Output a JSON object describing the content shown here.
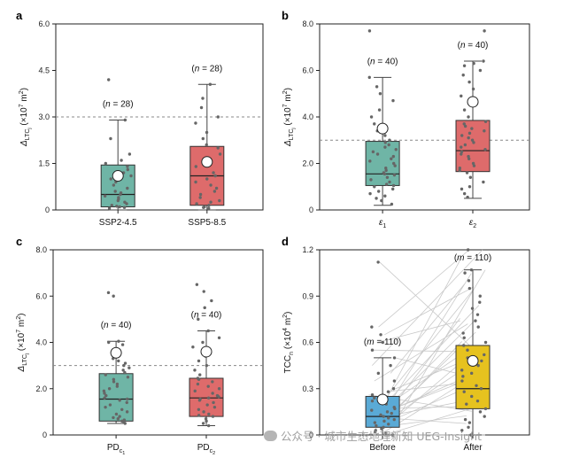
{
  "watermark": {
    "text": "公众号 · 城市生态地理新知 UEG-Insight"
  },
  "chart_data": [
    {
      "panel": "a",
      "type": "box",
      "ylabel": {
        "main": "Δ",
        "sub": "LTC",
        "subsub": "j",
        "rest": " (×10",
        "exp": "7",
        "unit": " m",
        "unitexp": "2",
        "close": ")"
      },
      "ylim": [
        0,
        6.0
      ],
      "yticks": [
        "0",
        "1.5",
        "3.0",
        "4.5",
        "6.0"
      ],
      "ytick_values": [
        0,
        1.5,
        3.0,
        4.5,
        6.0
      ],
      "reference_line": 3.0,
      "categories": [
        {
          "label": "SSP2-4.5",
          "n_text": "(n = 28)",
          "color": "#6fb5a6",
          "min": 0.0,
          "q1": 0.1,
          "median": 0.5,
          "q3": 1.45,
          "max": 2.9,
          "mean": 1.1,
          "points": [
            0.05,
            0.08,
            0.1,
            0.12,
            0.15,
            0.2,
            0.25,
            0.3,
            0.35,
            0.4,
            0.45,
            0.5,
            0.55,
            0.6,
            0.7,
            0.8,
            0.9,
            1.0,
            1.1,
            1.2,
            1.3,
            1.4,
            1.5,
            1.6,
            1.8,
            2.3,
            2.9,
            4.2
          ]
        },
        {
          "label": "SSP5-8.5",
          "n_text": "(n = 28)",
          "color": "#de6b6b",
          "min": 0.0,
          "q1": 0.15,
          "median": 1.1,
          "q3": 2.05,
          "max": 4.05,
          "mean": 1.55,
          "points": [
            0.05,
            0.08,
            0.1,
            0.15,
            0.2,
            0.25,
            0.3,
            0.4,
            0.5,
            0.6,
            0.7,
            0.8,
            0.9,
            1.0,
            1.1,
            1.2,
            1.4,
            1.6,
            1.8,
            2.0,
            2.1,
            2.3,
            2.5,
            2.8,
            3.0,
            3.3,
            3.6,
            4.05
          ]
        }
      ]
    },
    {
      "panel": "b",
      "type": "box",
      "ylabel": {
        "main": "Δ",
        "sub": "LTC",
        "subsub": "j",
        "rest": " (×10",
        "exp": "7",
        "unit": " m",
        "unitexp": "2",
        "close": ")"
      },
      "ylim": [
        0,
        8.0
      ],
      "yticks": [
        "0",
        "2.0",
        "4.0",
        "6.0",
        "8.0"
      ],
      "ytick_values": [
        0,
        2.0,
        4.0,
        6.0,
        8.0
      ],
      "reference_line": 3.0,
      "categories": [
        {
          "label": "ε",
          "label_sub": "1",
          "n_text": "(n = 40)",
          "color": "#6fb5a6",
          "min": 0.2,
          "q1": 1.05,
          "median": 1.55,
          "q3": 2.95,
          "max": 5.7,
          "mean": 3.5,
          "points": [
            0.25,
            0.4,
            0.5,
            0.6,
            0.7,
            0.8,
            0.9,
            1.0,
            1.05,
            1.1,
            1.2,
            1.3,
            1.4,
            1.5,
            1.55,
            1.6,
            1.7,
            1.8,
            1.9,
            2.0,
            2.1,
            2.2,
            2.3,
            2.4,
            2.5,
            2.6,
            2.7,
            2.8,
            2.9,
            3.0,
            3.2,
            3.4,
            3.7,
            4.0,
            4.3,
            4.7,
            5.0,
            5.3,
            5.7,
            7.7
          ]
        },
        {
          "label": "ε",
          "label_sub": "2",
          "n_text": "(n = 40)",
          "color": "#de6b6b",
          "min": 0.5,
          "q1": 1.65,
          "median": 2.55,
          "q3": 3.85,
          "max": 6.4,
          "mean": 4.65,
          "points": [
            0.55,
            0.7,
            0.9,
            1.0,
            1.2,
            1.4,
            1.6,
            1.7,
            1.8,
            1.9,
            2.0,
            2.2,
            2.3,
            2.4,
            2.5,
            2.6,
            2.7,
            2.8,
            2.9,
            3.0,
            3.1,
            3.2,
            3.3,
            3.4,
            3.5,
            3.6,
            3.7,
            3.8,
            4.0,
            4.3,
            4.6,
            4.9,
            5.2,
            5.5,
            5.8,
            6.0,
            6.2,
            6.3,
            6.4,
            7.7
          ]
        }
      ]
    },
    {
      "panel": "c",
      "type": "box",
      "ylabel": {
        "main": "Δ",
        "sub": "LTC",
        "subsub": "j",
        "rest": " (×10",
        "exp": "7",
        "unit": " m",
        "unitexp": "2",
        "close": ")"
      },
      "ylim": [
        0,
        8.0
      ],
      "yticks": [
        "0",
        "2.0",
        "4.0",
        "6.0",
        "8.0"
      ],
      "ytick_values": [
        0,
        2.0,
        4.0,
        6.0,
        8.0
      ],
      "reference_line": 3.0,
      "categories": [
        {
          "label": "PD",
          "label_sub": "c",
          "label_subsub": "1",
          "n_text": "(n = 40)",
          "color": "#6fb5a6",
          "min": 0.5,
          "q1": 0.6,
          "median": 1.55,
          "q3": 2.65,
          "max": 4.05,
          "mean": 3.55,
          "points": [
            0.5,
            0.55,
            0.6,
            0.65,
            0.7,
            0.75,
            0.8,
            0.9,
            1.0,
            1.1,
            1.2,
            1.3,
            1.4,
            1.5,
            1.55,
            1.6,
            1.7,
            1.8,
            1.9,
            2.0,
            2.1,
            2.2,
            2.3,
            2.4,
            2.5,
            2.6,
            2.7,
            2.8,
            2.9,
            3.0,
            3.1,
            3.2,
            3.3,
            3.5,
            3.7,
            3.9,
            4.0,
            4.05,
            6.0,
            6.15
          ]
        },
        {
          "label": "PD",
          "label_sub": "c",
          "label_subsub": "2",
          "n_text": "(n = 40)",
          "color": "#de6b6b",
          "min": 0.4,
          "q1": 0.8,
          "median": 1.6,
          "q3": 2.45,
          "max": 4.5,
          "mean": 3.6,
          "points": [
            0.4,
            0.5,
            0.6,
            0.7,
            0.8,
            0.85,
            0.9,
            1.0,
            1.1,
            1.2,
            1.3,
            1.4,
            1.5,
            1.55,
            1.6,
            1.65,
            1.7,
            1.8,
            1.9,
            2.0,
            2.1,
            2.2,
            2.3,
            2.4,
            2.45,
            2.6,
            2.8,
            3.0,
            3.2,
            3.4,
            3.6,
            3.8,
            4.0,
            4.2,
            4.5,
            5.0,
            5.5,
            5.8,
            6.2,
            6.5
          ]
        }
      ]
    },
    {
      "panel": "d",
      "type": "box",
      "ylabel": {
        "main": "TCC",
        "sub": "n",
        "subsub": "",
        "rest": " (×10",
        "exp": "4",
        "unit": " m",
        "unitexp": "2",
        "close": ")"
      },
      "ylim": [
        0,
        1.2
      ],
      "yticks": [
        "0",
        "0.3",
        "0.6",
        "0.9",
        "1.2"
      ],
      "ytick_values": [
        0,
        0.3,
        0.6,
        0.9,
        1.2
      ],
      "paired_lines": true,
      "categories": [
        {
          "label": "Before",
          "n_text": "(m = 110)",
          "color": "#5aaad6",
          "min": 0.0,
          "q1": 0.05,
          "median": 0.12,
          "q3": 0.25,
          "max": 0.5,
          "mean": 0.23,
          "points": [
            0.0,
            0.01,
            0.02,
            0.03,
            0.04,
            0.05,
            0.06,
            0.07,
            0.08,
            0.09,
            0.1,
            0.11,
            0.12,
            0.13,
            0.14,
            0.15,
            0.16,
            0.17,
            0.18,
            0.2,
            0.22,
            0.24,
            0.26,
            0.28,
            0.3,
            0.35,
            0.4,
            0.45,
            0.5,
            0.55,
            0.6,
            0.65,
            0.7,
            1.12
          ]
        },
        {
          "label": "After",
          "n_text": "(m = 110)",
          "color": "#e6c21f",
          "min": 0.0,
          "q1": 0.17,
          "median": 0.3,
          "q3": 0.58,
          "max": 1.07,
          "mean": 0.48,
          "points": [
            0.0,
            0.03,
            0.05,
            0.08,
            0.1,
            0.12,
            0.15,
            0.17,
            0.2,
            0.22,
            0.25,
            0.28,
            0.3,
            0.32,
            0.35,
            0.38,
            0.4,
            0.42,
            0.45,
            0.48,
            0.5,
            0.52,
            0.55,
            0.58,
            0.6,
            0.63,
            0.66,
            0.7,
            0.74,
            0.78,
            0.82,
            0.86,
            0.9,
            0.95,
            1.0,
            1.05,
            1.07,
            1.2
          ]
        }
      ]
    }
  ]
}
